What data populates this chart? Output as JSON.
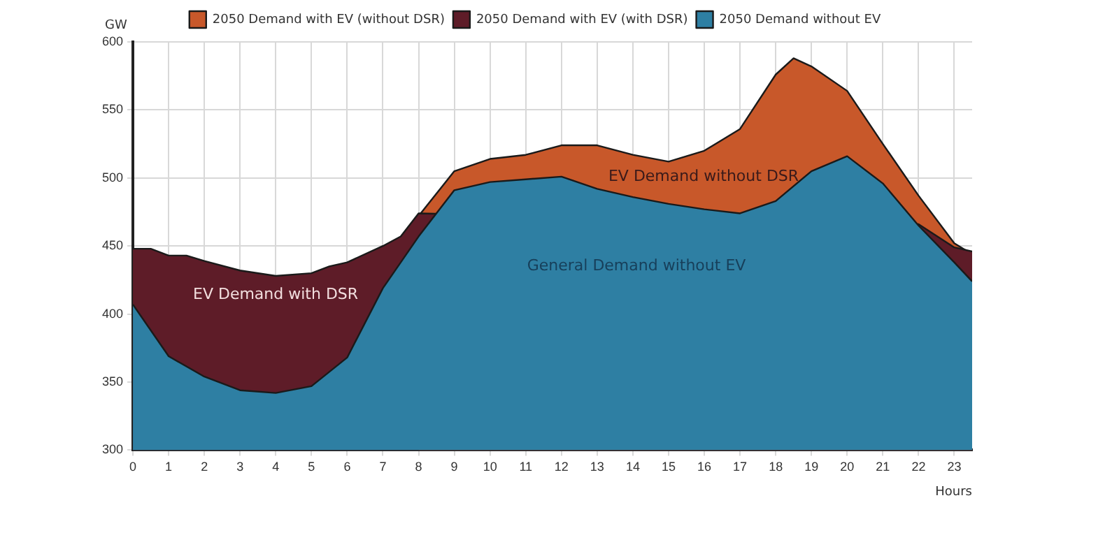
{
  "chart_data": {
    "type": "area",
    "xlabel": "Hours",
    "ylabel": "GW",
    "legend": "top",
    "grid": true,
    "xlim": [
      0,
      23.5
    ],
    "xticks": [
      0,
      1,
      2,
      3,
      4,
      5,
      6,
      7,
      8,
      9,
      10,
      11,
      12,
      13,
      14,
      15,
      16,
      17,
      18,
      19,
      20,
      21,
      22,
      23
    ],
    "ylim": [
      300,
      600
    ],
    "yticks": [
      300,
      350,
      400,
      450,
      500,
      550,
      600
    ],
    "series": [
      {
        "name": "2050 Demand with EV (without DSR)",
        "color": "#c8582a",
        "x": [
          8,
          9,
          10,
          11,
          12,
          13,
          14,
          15,
          16,
          17,
          18,
          18.5,
          19,
          20,
          21,
          22,
          23,
          23.5
        ],
        "values": [
          472,
          505,
          514,
          517,
          524,
          524,
          517,
          512,
          520,
          536,
          576,
          588,
          582,
          564,
          525,
          487,
          452,
          444
        ]
      },
      {
        "name": "2050 Demand with EV (with DSR)",
        "color": "#5e1c28",
        "x": [
          0,
          0.5,
          1,
          1.5,
          2,
          3,
          4,
          5,
          5.5,
          6,
          7,
          7.5,
          8,
          22,
          23,
          23.5
        ],
        "values": [
          448,
          448,
          443,
          443,
          439,
          432,
          428,
          430,
          435,
          438,
          450,
          457,
          474,
          466,
          449,
          446
        ]
      },
      {
        "name": "2050 Demand without EV",
        "color": "#2e7fa3",
        "x": [
          0,
          1,
          2,
          3,
          4,
          5,
          6,
          7,
          8,
          9,
          10,
          11,
          12,
          13,
          14,
          15,
          16,
          17,
          18,
          19,
          20,
          21,
          22,
          23,
          23.5
        ],
        "values": [
          407,
          369,
          354,
          344,
          342,
          347,
          368,
          419,
          457,
          491,
          497,
          499,
          501,
          492,
          486,
          481,
          477,
          474,
          483,
          505,
          516,
          496,
          465,
          438,
          424
        ]
      }
    ],
    "annotations": [
      "EV Demand with DSR",
      "EV Demand without DSR",
      "General Demand without EV"
    ]
  }
}
